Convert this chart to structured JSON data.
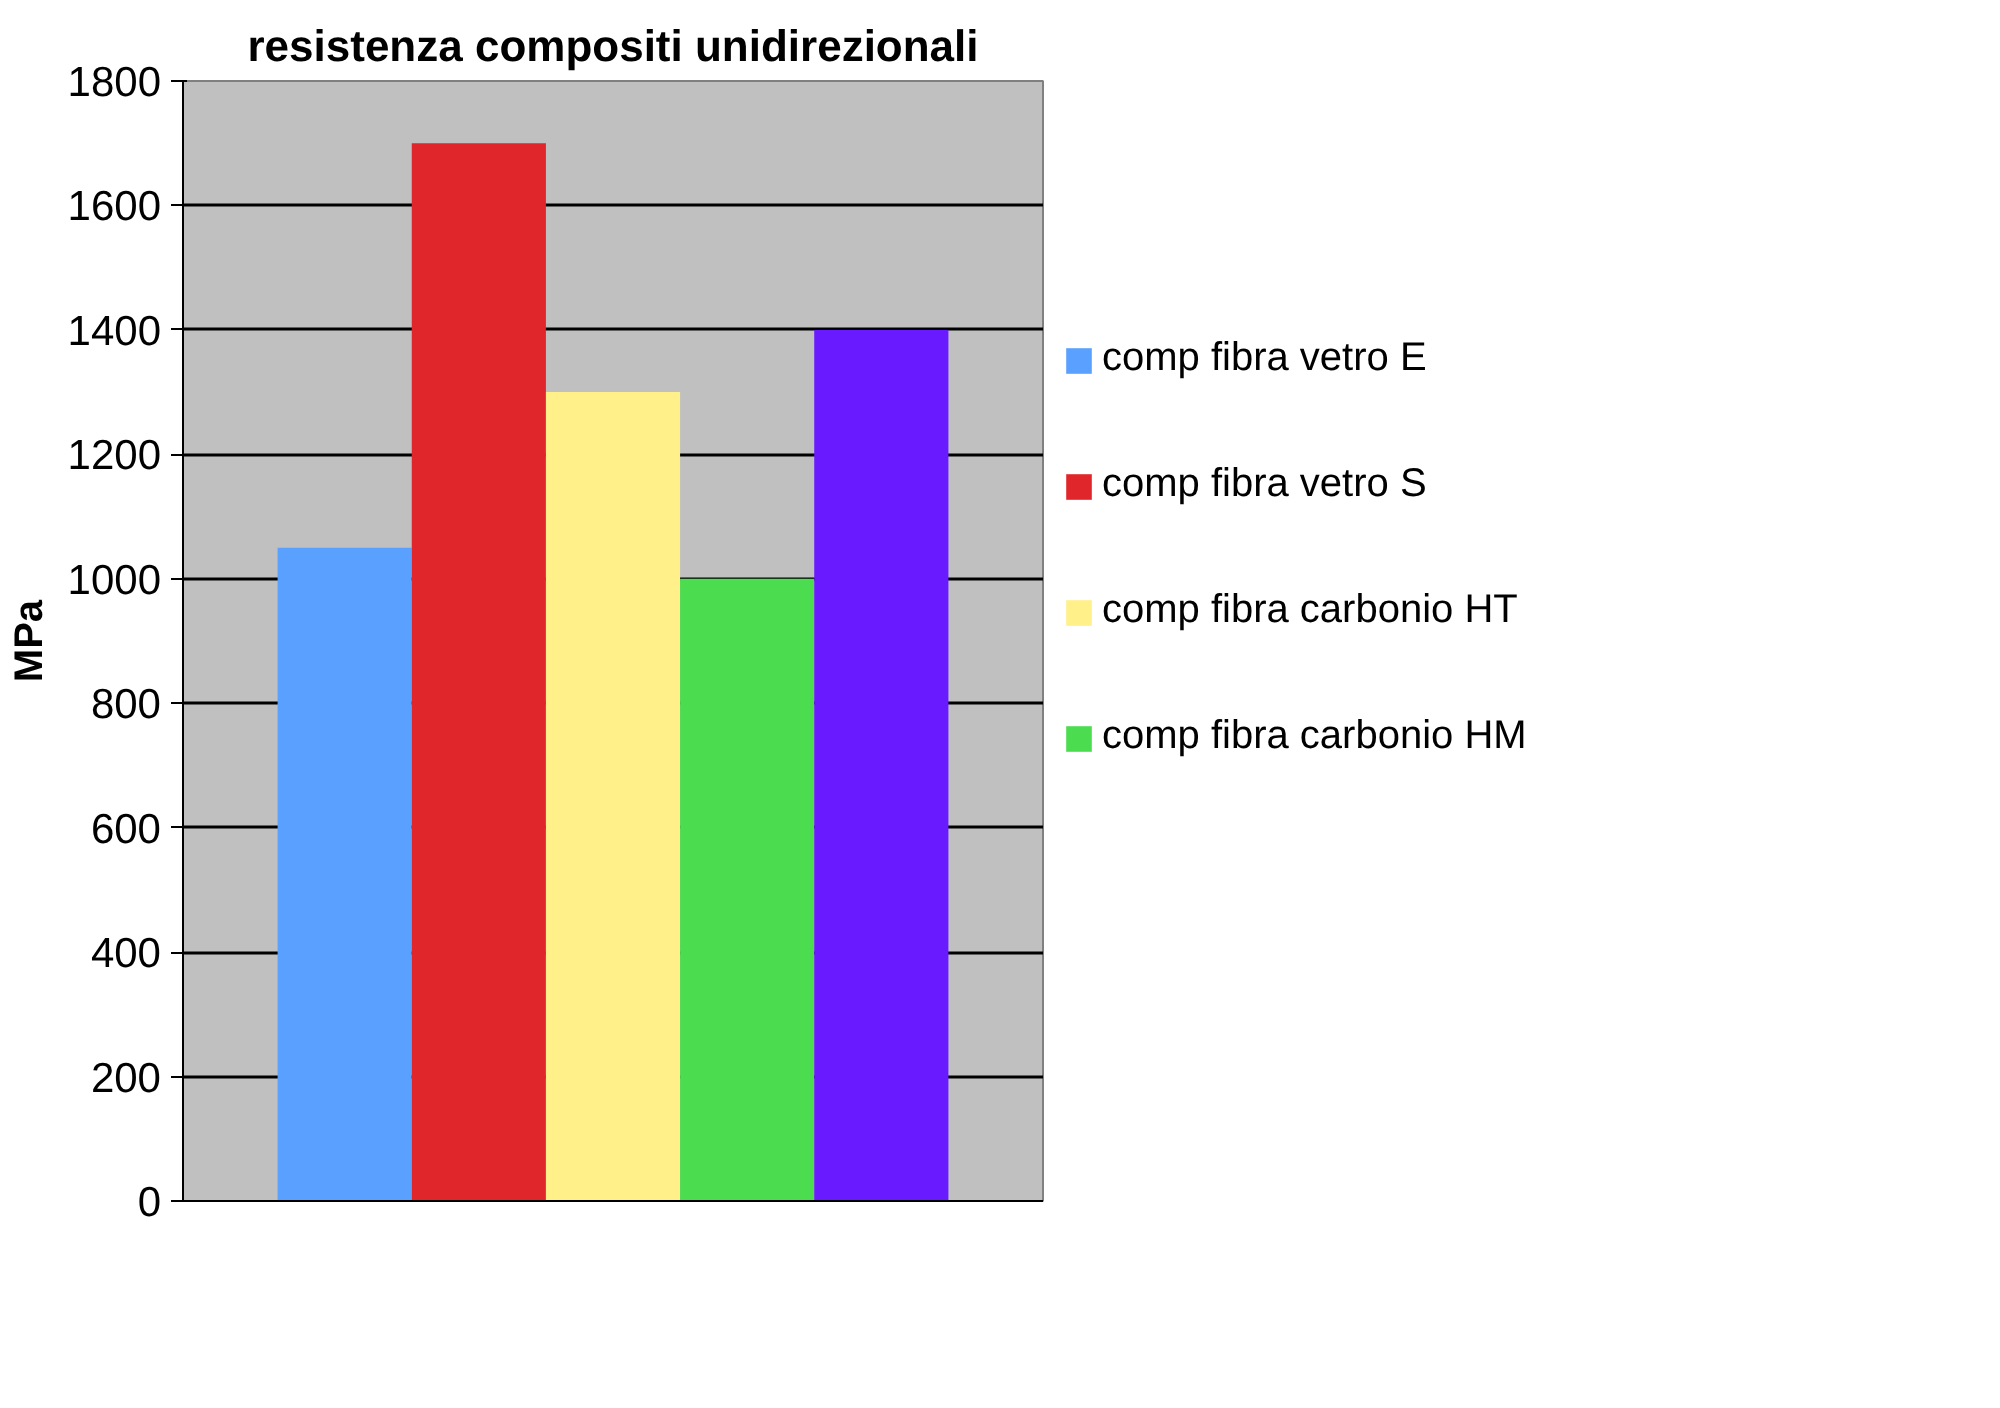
{
  "chart_data": {
    "type": "bar",
    "title": "resistenza compositi unidirezionali",
    "ylabel": "MPa",
    "categories": [
      null
    ],
    "series": [
      {
        "name": "comp fibra vetro E",
        "color": "#5aa0ff",
        "values": [
          1050
        ]
      },
      {
        "name": "comp fibra vetro S",
        "color": "#e0262b",
        "values": [
          1700
        ]
      },
      {
        "name": "comp fibra carbonio HT",
        "color": "#fff08a",
        "values": [
          1300
        ]
      },
      {
        "name": "comp fibra carbonio HM",
        "color": "#4cdc50",
        "values": [
          1000
        ]
      },
      {
        "color": "#6a1aff",
        "values": [
          1400
        ]
      }
    ],
    "ylim": [
      0,
      1800
    ],
    "yticks": [
      0,
      200,
      400,
      600,
      800,
      1000,
      1200,
      1400,
      1600,
      1800
    ],
    "grid": "y",
    "legend": "right"
  }
}
